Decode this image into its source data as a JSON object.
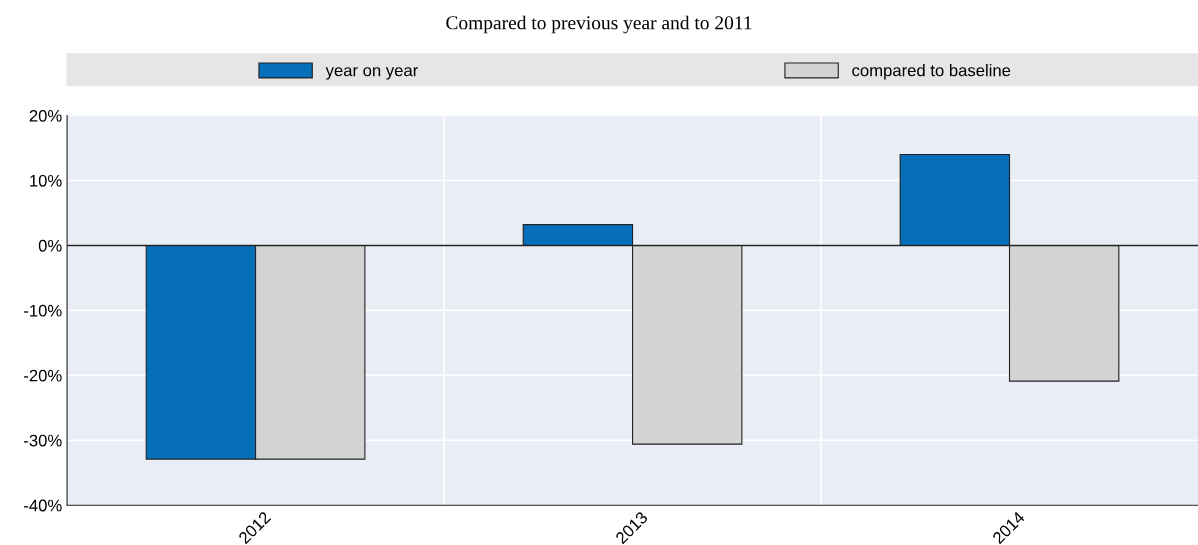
{
  "chart_data": {
    "type": "bar",
    "title": "Compared to previous year and to 2011",
    "categories": [
      "2012",
      "2013",
      "2014"
    ],
    "series": [
      {
        "name": "year on year",
        "color": "#0570b9",
        "values": [
          -32.9,
          3.2,
          14.0
        ]
      },
      {
        "name": "compared to baseline",
        "color": "#d3d3d3",
        "values": [
          -32.9,
          -30.6,
          -20.9
        ]
      }
    ],
    "ylim": [
      -40,
      20
    ],
    "yticks": [
      {
        "value": -40,
        "label": "-40%"
      },
      {
        "value": -30,
        "label": "-30%"
      },
      {
        "value": -20,
        "label": "-20%"
      },
      {
        "value": -10,
        "label": "-10%"
      },
      {
        "value": 0,
        "label": "0%"
      },
      {
        "value": 10,
        "label": "10%"
      },
      {
        "value": 20,
        "label": "20%"
      }
    ],
    "grid": true,
    "legend": "top"
  }
}
